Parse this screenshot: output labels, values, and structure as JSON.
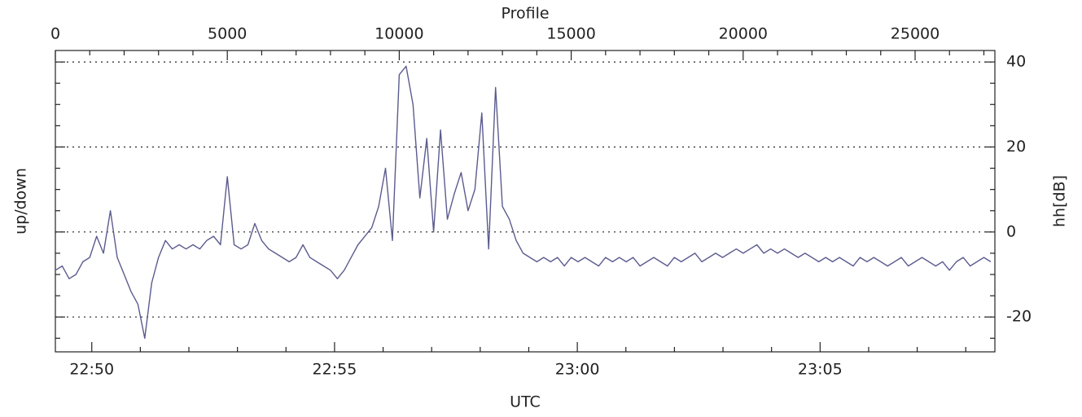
{
  "chart_data": {
    "type": "line",
    "top_label": "Profile",
    "x_label": "UTC",
    "y_label": "up/down",
    "y2_label": "hh[dB]",
    "x": [
      0,
      200,
      400,
      600,
      800,
      1000,
      1200,
      1400,
      1600,
      1800,
      2000,
      2200,
      2400,
      2600,
      2800,
      3000,
      3200,
      3400,
      3600,
      3800,
      4000,
      4200,
      4400,
      4600,
      4800,
      5000,
      5200,
      5400,
      5600,
      5800,
      6000,
      6200,
      6400,
      6600,
      6800,
      7000,
      7200,
      7400,
      7600,
      7800,
      8000,
      8200,
      8400,
      8600,
      8800,
      9000,
      9200,
      9400,
      9600,
      9800,
      10000,
      10200,
      10400,
      10600,
      10800,
      11000,
      11200,
      11400,
      11600,
      11800,
      12000,
      12200,
      12400,
      12600,
      12800,
      13000,
      13200,
      13400,
      13600,
      13800,
      14000,
      14200,
      14400,
      14600,
      14800,
      15000,
      15200,
      15400,
      15600,
      15800,
      16000,
      16200,
      16400,
      16600,
      16800,
      17000,
      17200,
      17400,
      17600,
      17800,
      18000,
      18200,
      18400,
      18600,
      18800,
      19000,
      19200,
      19400,
      19600,
      19800,
      20000,
      20200,
      20400,
      20600,
      20800,
      21000,
      21200,
      21400,
      21600,
      21800,
      22000,
      22200,
      22400,
      22600,
      22800,
      23000,
      23200,
      23400,
      23600,
      23800,
      24000,
      24200,
      24400,
      24600,
      24800,
      25000,
      25200,
      25400,
      25600,
      25800,
      26000,
      26200,
      26400,
      26600,
      26800,
      27000,
      27200
    ],
    "series": [
      {
        "name": "hh",
        "color": "#5b5b8f",
        "axis": "y2",
        "values": [
          -9,
          -8,
          -11,
          -10,
          -7,
          -6,
          -1,
          -5,
          5,
          -6,
          -10,
          -14,
          -17,
          -25,
          -12,
          -6,
          -2,
          -4,
          -3,
          -4,
          -3,
          -4,
          -2,
          -1,
          -3,
          13,
          -3,
          -4,
          -3,
          2,
          -2,
          -4,
          -5,
          -6,
          -7,
          -6,
          -3,
          -6,
          -7,
          -8,
          -9,
          -11,
          -9,
          -6,
          -3,
          -1,
          1,
          6,
          15,
          -2,
          37,
          39,
          30,
          8,
          22,
          0,
          24,
          3,
          9,
          14,
          5,
          10,
          28,
          -4,
          34,
          6,
          3,
          -2,
          -5,
          -6,
          -7,
          -6,
          -7,
          -6,
          -8,
          -6,
          -7,
          -6,
          -7,
          -8,
          -6,
          -7,
          -6,
          -7,
          -6,
          -8,
          -7,
          -6,
          -7,
          -8,
          -6,
          -7,
          -6,
          -5,
          -7,
          -6,
          -5,
          -6,
          -5,
          -4,
          -5,
          -4,
          -3,
          -5,
          -4,
          -5,
          -4,
          -5,
          -6,
          -5,
          -6,
          -7,
          -6,
          -7,
          -6,
          -7,
          -8,
          -6,
          -7,
          -6,
          -7,
          -8,
          -7,
          -6,
          -8,
          -7,
          -6,
          -7,
          -8,
          -7,
          -9,
          -7,
          -6,
          -8,
          -7,
          -6,
          -7
        ]
      }
    ],
    "xlim": [
      0,
      27320
    ],
    "xticks": [
      0,
      5000,
      10000,
      15000,
      20000,
      25000
    ],
    "xminor_ticks": [
      1000,
      2000,
      3000,
      4000,
      6000,
      7000,
      8000,
      9000,
      11000,
      12000,
      13000,
      14000,
      16000,
      17000,
      18000,
      19000,
      21000,
      22000,
      23000,
      24000,
      26000,
      27000
    ],
    "time_lim": [
      49.25,
      68.6
    ],
    "time_ticks": [
      {
        "value": 50,
        "label": "22:50"
      },
      {
        "value": 55,
        "label": "22:55"
      },
      {
        "value": 60,
        "label": "23:00"
      },
      {
        "value": 65,
        "label": "23:05"
      }
    ],
    "time_minor_ticks": [
      51,
      52,
      53,
      54,
      56,
      57,
      58,
      59,
      61,
      62,
      63,
      64,
      66,
      67,
      68
    ],
    "y2lim": [
      -28.2,
      42.7
    ],
    "y2ticks": [
      -20,
      0,
      20,
      40
    ],
    "y2minor_ticks": [
      -25,
      -15,
      -10,
      -5,
      5,
      10,
      15,
      25,
      30,
      35
    ],
    "grid": true
  }
}
